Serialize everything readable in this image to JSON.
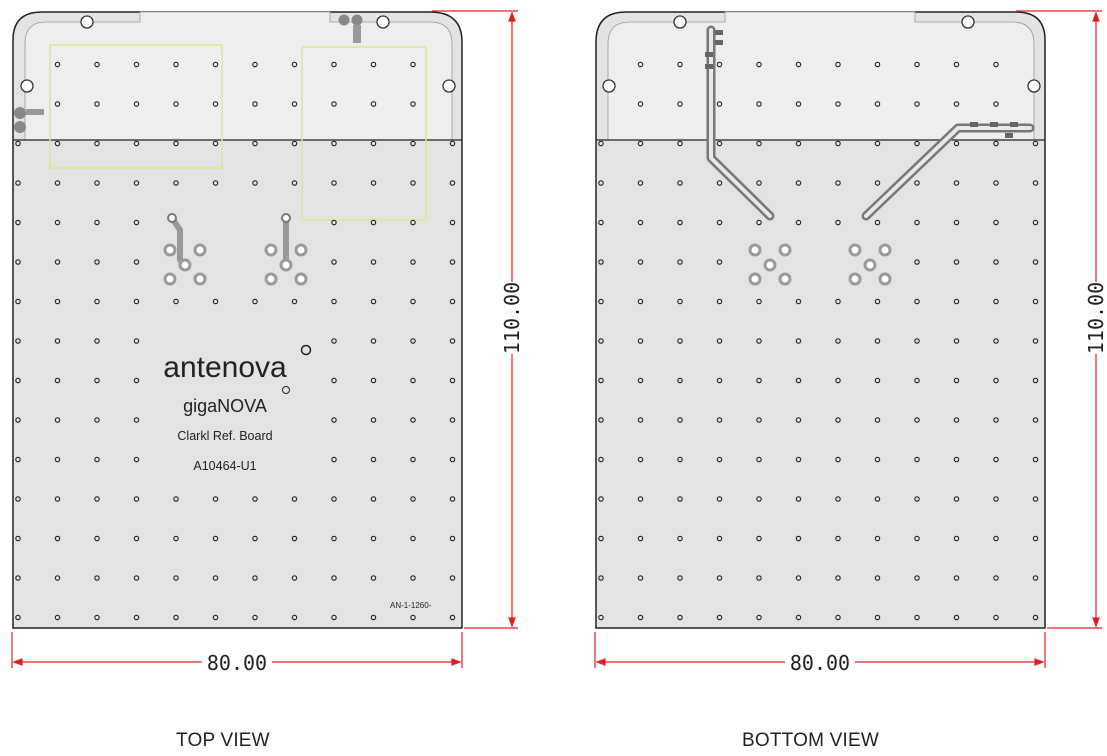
{
  "top_view": {
    "caption": "TOP VIEW",
    "logo": "antenova",
    "product": "gigaNOVA",
    "board_name": "Clarkl Ref. Board",
    "part_number": "A10464-U1",
    "corner_code": "AN-1-1260-",
    "width_dim": "80.00",
    "height_dim": "110.00"
  },
  "bottom_view": {
    "caption": "BOTTOM VIEW",
    "width_dim": "80.00",
    "height_dim": "110.00"
  },
  "colors": {
    "board_fill": "#e3e3e3",
    "outline": "#222222",
    "dimension": "#e02020",
    "keepout": "#e4e48a",
    "pad": "#9a9a9a"
  }
}
